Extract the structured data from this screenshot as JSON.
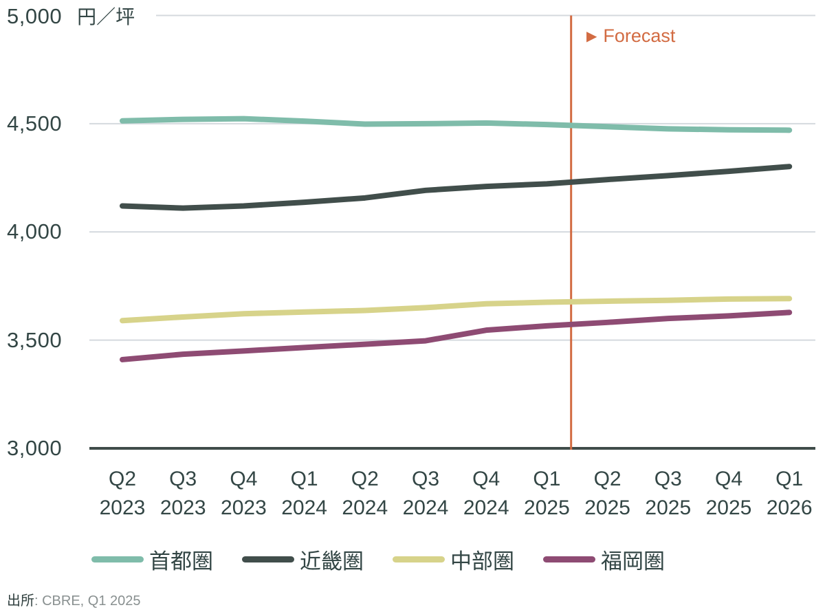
{
  "source": {
    "label": "出所",
    "detail": ": CBRE, Q1 2025"
  },
  "chart_data": {
    "type": "line",
    "title": "",
    "unit": "円／坪",
    "xlabel": "",
    "ylabel": "円／坪",
    "categories": [
      "Q2 2023",
      "Q3 2023",
      "Q4 2023",
      "Q1 2024",
      "Q2 2024",
      "Q3 2024",
      "Q4 2024",
      "Q1 2025",
      "Q2 2025",
      "Q3 2025",
      "Q4 2025",
      "Q1 2026"
    ],
    "series": [
      {
        "name": "首都圏",
        "color": "#7FBCAA",
        "values": [
          4513,
          4520,
          4523,
          4512,
          4498,
          4500,
          4503,
          4496,
          4486,
          4476,
          4472,
          4470
        ]
      },
      {
        "name": "近畿圏",
        "color": "#414E4B",
        "values": [
          4120,
          4110,
          4120,
          4137,
          4157,
          4192,
          4210,
          4222,
          4242,
          4260,
          4280,
          4302
        ]
      },
      {
        "name": "中部圏",
        "color": "#D7D38A",
        "values": [
          3590,
          3607,
          3622,
          3630,
          3637,
          3650,
          3668,
          3675,
          3680,
          3684,
          3690,
          3692
        ]
      },
      {
        "name": "福岡圏",
        "color": "#8E4B73",
        "values": [
          3410,
          3435,
          3450,
          3466,
          3481,
          3497,
          3546,
          3566,
          3582,
          3600,
          3612,
          3628
        ]
      }
    ],
    "ylim": [
      3000,
      5000
    ],
    "yticks": [
      3000,
      3500,
      4000,
      4500,
      5000
    ],
    "ytick_labels": [
      "3,000",
      "3,500",
      "4,000",
      "4,500",
      "5,000"
    ],
    "grid": "horizontal",
    "grid_color": "#D4D9DE",
    "axis_color": "#3F4C4A",
    "legend_position": "bottom",
    "annotations": {
      "forecast": {
        "marker": "▶",
        "label": "Forecast",
        "color": "#D26B42",
        "after_index": 7.4
      }
    }
  }
}
